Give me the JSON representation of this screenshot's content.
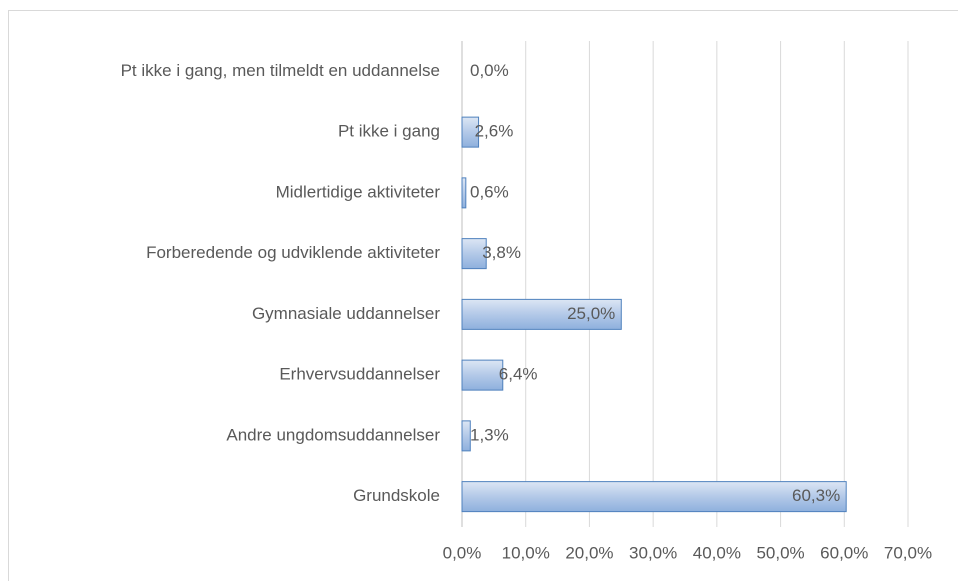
{
  "chart_data": {
    "type": "barh",
    "categories": [
      "Pt ikke i gang, men tilmeldt en uddannelse",
      "Pt ikke i gang",
      "Midlertidige aktiviteter",
      "Forberedende og udviklende aktiviteter",
      "Gymnasiale uddannelser",
      "Erhvervsuddannelser",
      "Andre  ungdomsuddannelser",
      "Grundskole"
    ],
    "values": [
      0.0,
      2.6,
      0.6,
      3.8,
      25.0,
      6.4,
      1.3,
      60.3
    ],
    "value_labels": [
      "0,0%",
      "2,6%",
      "0,6%",
      "3,8%",
      "25,0%",
      "6,4%",
      "1,3%",
      "60,3%"
    ],
    "color": "#4f81bd",
    "xlim": [
      0,
      70
    ],
    "xticks": [
      {
        "value": 0,
        "label": "0,0%"
      },
      {
        "value": 10,
        "label": "10,0%"
      },
      {
        "value": 20,
        "label": "20,0%"
      },
      {
        "value": 30,
        "label": "30,0%"
      },
      {
        "value": 40,
        "label": "40,0%"
      },
      {
        "value": 50,
        "label": "50,0%"
      },
      {
        "value": 60,
        "label": "60,0%"
      },
      {
        "value": 70,
        "label": "70,0%"
      }
    ],
    "grid": true
  }
}
